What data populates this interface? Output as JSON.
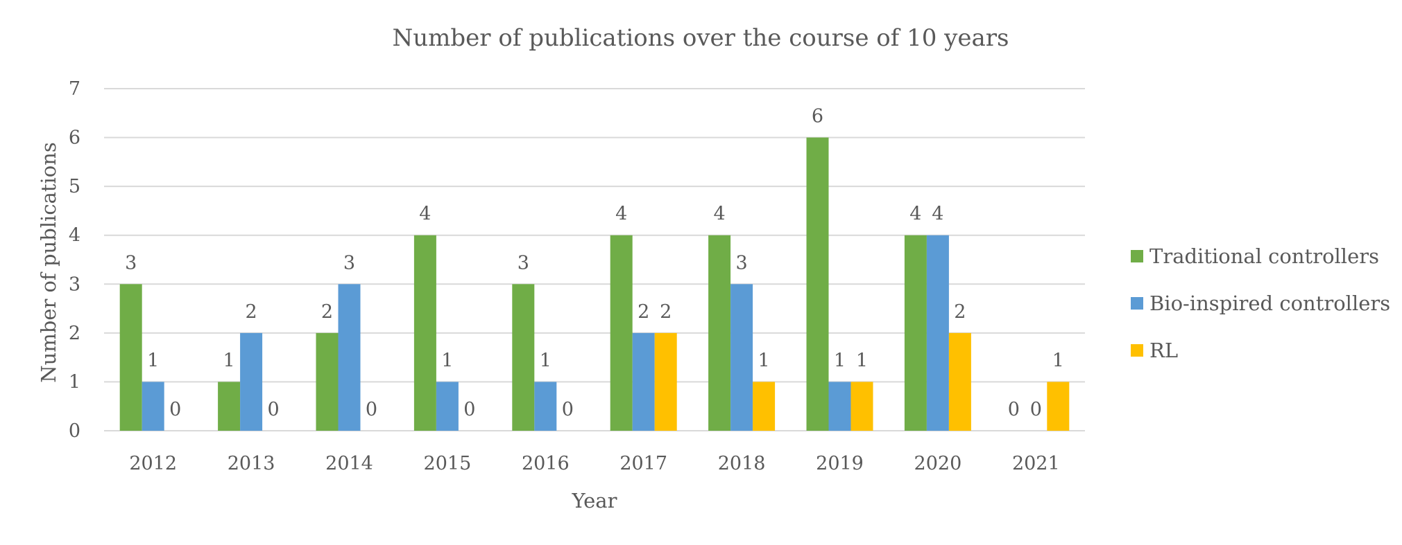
{
  "colors": {
    "traditional": "#70ad47",
    "bio": "#5b9bd5",
    "rl": "#ffc000",
    "text": "#595959",
    "grid": "#d9d9d9"
  },
  "chart_data": {
    "type": "bar",
    "title": "Number of publications over the course of 10 years",
    "xlabel": "Year",
    "ylabel": "Number of publications",
    "ylim": [
      0,
      7
    ],
    "yticks": [
      0,
      1,
      2,
      3,
      4,
      5,
      6,
      7
    ],
    "grid": true,
    "legend_position": "right",
    "categories": [
      "2012",
      "2013",
      "2014",
      "2015",
      "2016",
      "2017",
      "2018",
      "2019",
      "2020",
      "2021"
    ],
    "series": [
      {
        "name": "Traditional controllers",
        "color": "#70ad47",
        "values": [
          3,
          1,
          2,
          4,
          3,
          4,
          4,
          6,
          4,
          0
        ]
      },
      {
        "name": "Bio-inspired controllers",
        "color": "#5b9bd5",
        "values": [
          1,
          2,
          3,
          1,
          1,
          2,
          3,
          1,
          4,
          0
        ]
      },
      {
        "name": "RL",
        "color": "#ffc000",
        "values": [
          0,
          0,
          0,
          0,
          0,
          2,
          1,
          1,
          2,
          1
        ]
      }
    ],
    "data_labels": [
      [
        "3",
        "1",
        "2",
        "4",
        "3",
        "4",
        "4",
        "6",
        "4",
        "0"
      ],
      [
        "1",
        "2",
        "3",
        "1",
        "1",
        "2",
        "3",
        "1",
        "4",
        "0"
      ],
      [
        "0",
        "0",
        "0",
        "0",
        "0",
        "2",
        "1",
        "1",
        "2",
        "1"
      ]
    ]
  }
}
